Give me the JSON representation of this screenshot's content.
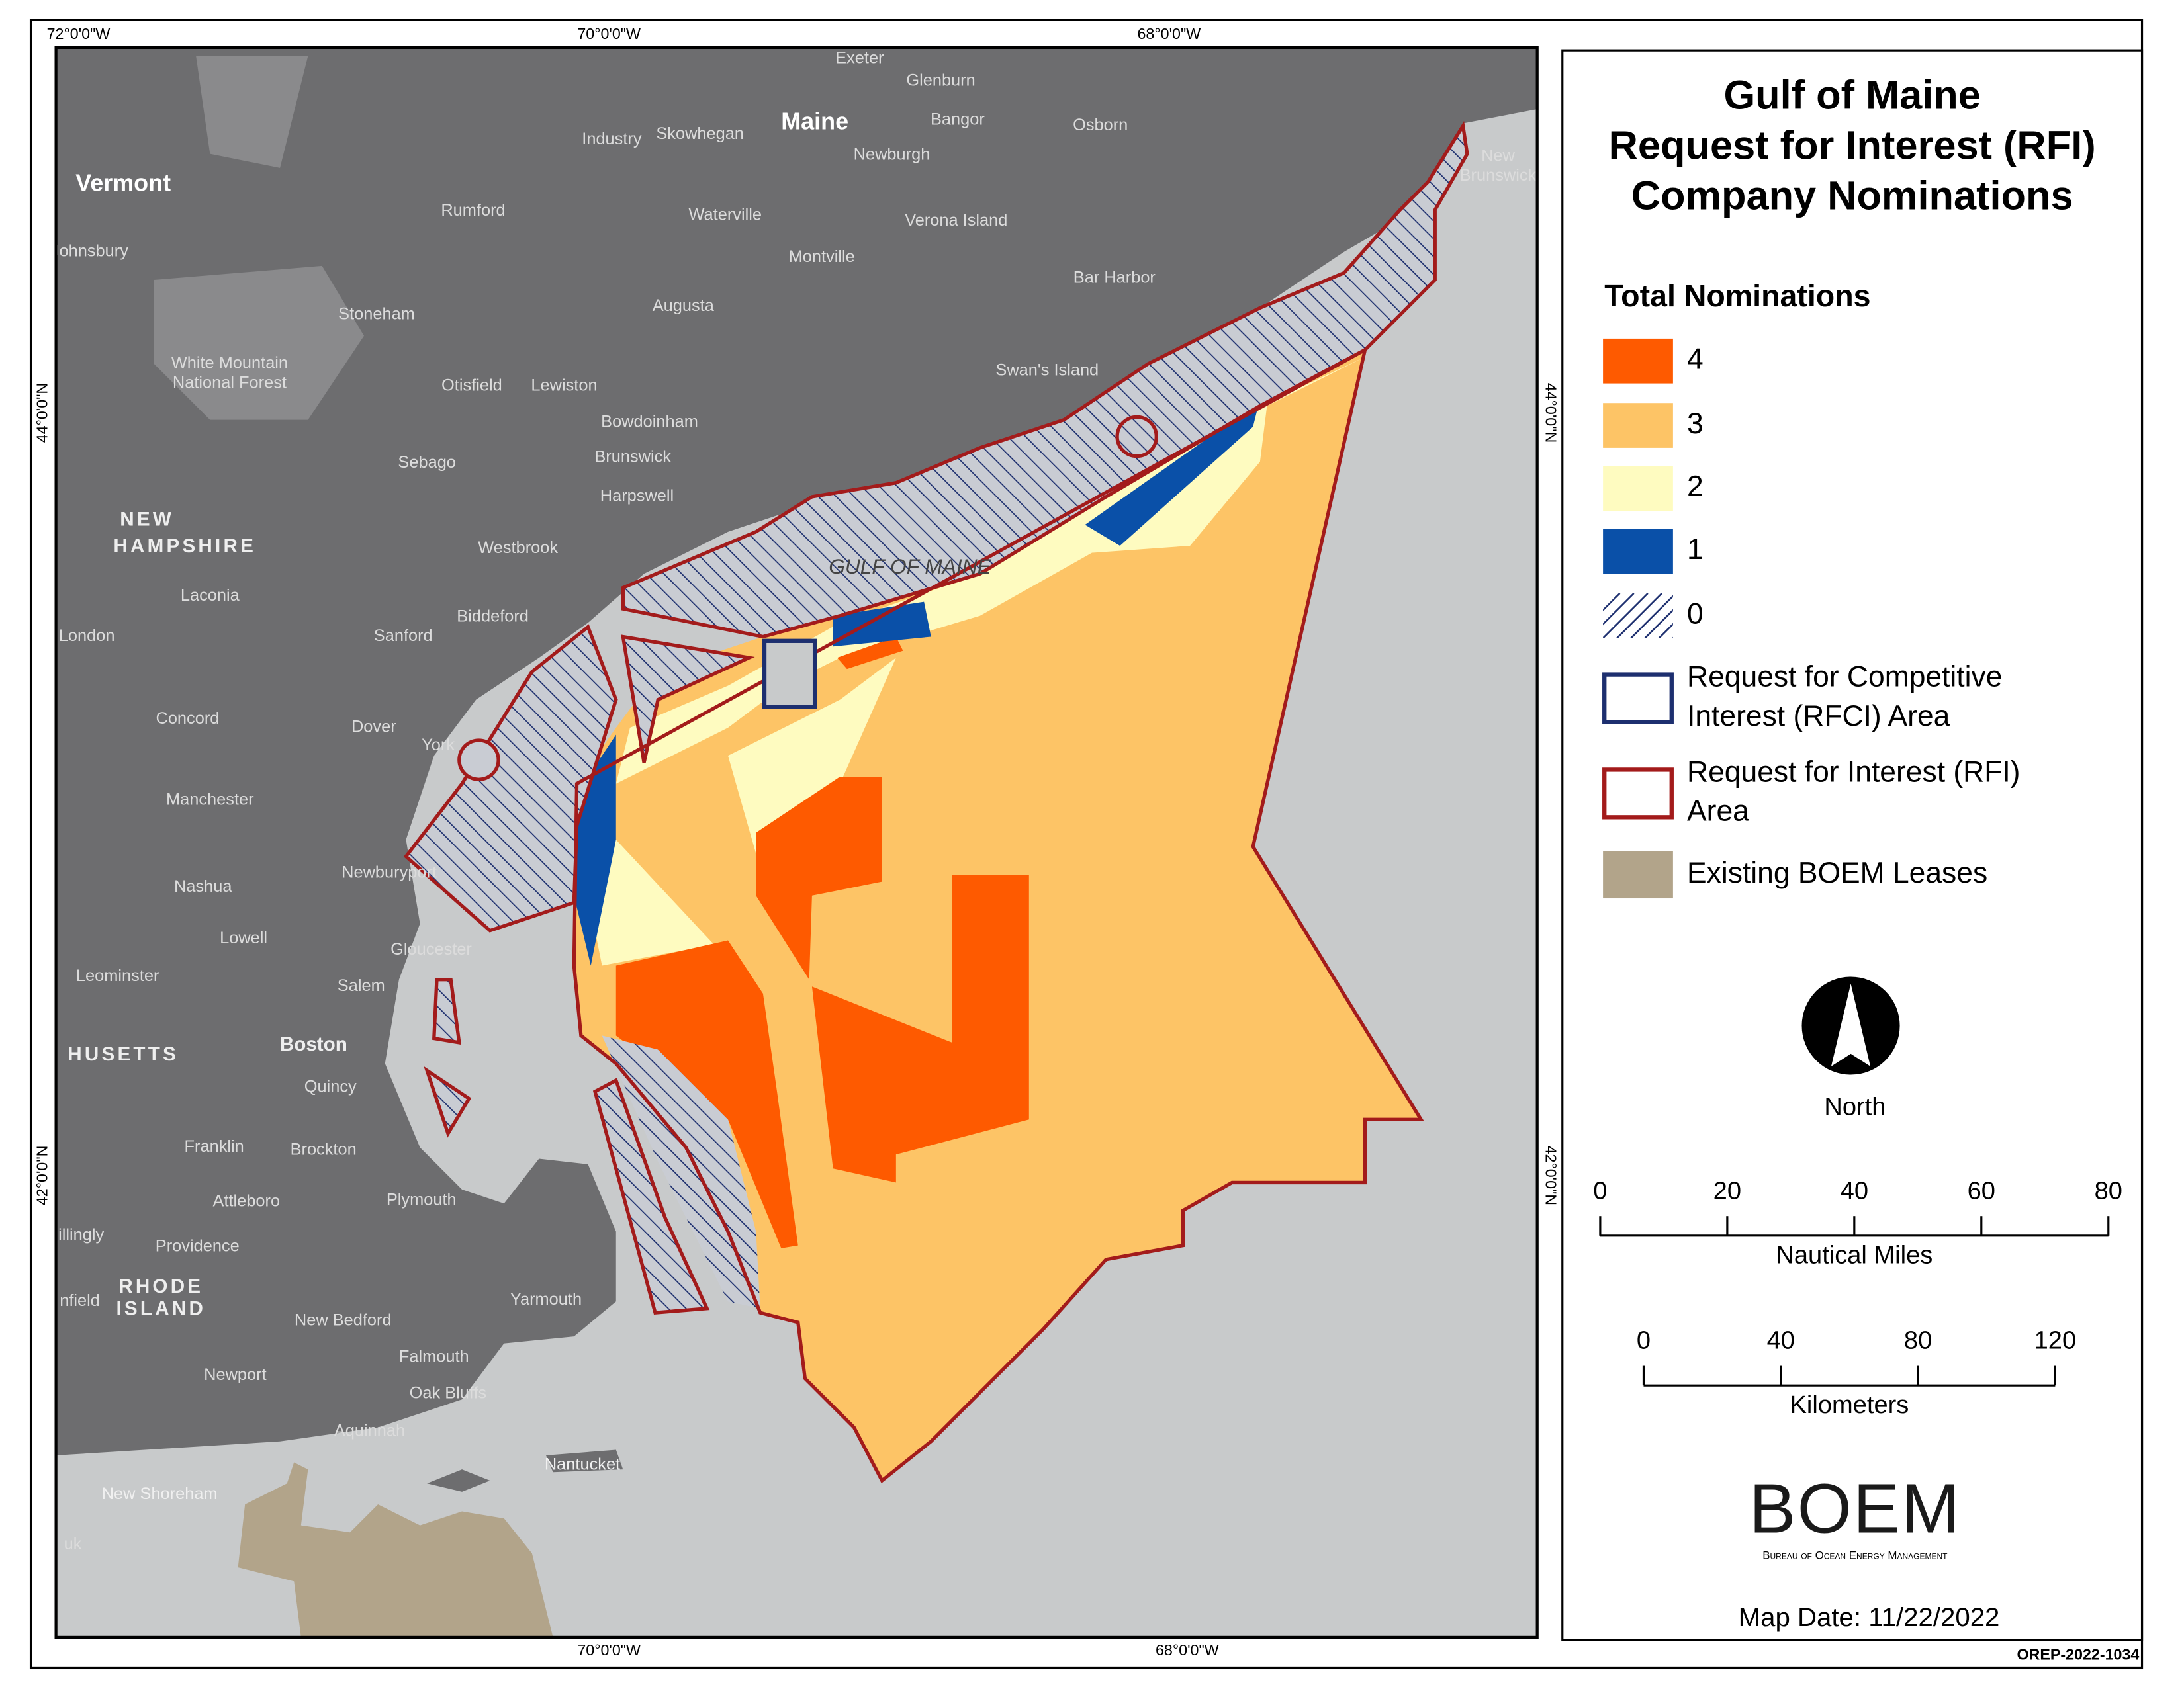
{
  "header": {
    "title_lines": [
      "Gulf of Maine",
      "Request for Interest (RFI)",
      "Company Nominations"
    ]
  },
  "legend": {
    "title": "Total Nominations",
    "nominations": [
      {
        "label": "4",
        "color": "#fe5a00"
      },
      {
        "label": "3",
        "color": "#fdc466"
      },
      {
        "label": "2",
        "color": "#fefbc0"
      },
      {
        "label": "1",
        "color": "#0a50a8"
      },
      {
        "label": "0",
        "color": "#1d2f6f"
      }
    ],
    "areas": [
      {
        "label_lines": [
          "Request for Competitive",
          "Interest (RFCI) Area"
        ],
        "color": "#1d2f6f"
      },
      {
        "label_lines": [
          "Request for Interest (RFI)",
          "Area"
        ],
        "color": "#a31b1b"
      },
      {
        "label_lines": [
          "Existing BOEM Leases"
        ],
        "color": "#b2a48a"
      }
    ]
  },
  "north_label": "North",
  "scale_bars": [
    {
      "ticks": [
        0,
        20,
        40,
        60,
        80
      ],
      "unit": "Nautical Miles"
    },
    {
      "ticks": [
        0,
        40,
        80,
        120
      ],
      "unit": "Kilometers"
    }
  ],
  "graticule": {
    "top": [
      "72°0'0\"W",
      "70°0'0\"W",
      "68°0'0\"W"
    ],
    "bottom": [
      "70°0'0\"W",
      "68°0'0\"W"
    ],
    "left": [
      "44°0'0\"N",
      "42°0'0\"N"
    ],
    "right": [
      "44°0'0\"N",
      "42°0'0\"N"
    ]
  },
  "map_labels": [
    "Exeter",
    "Glenburn",
    "Industry",
    "Skowhegan",
    "Maine",
    "Bangor",
    "Osborn",
    "Newburgh",
    "New",
    "Brunswick",
    "Vermont",
    "Rumford",
    "Waterville",
    "Verona Island",
    "Johnsbury",
    "Montville",
    "Bar Harbor",
    "Stoneham",
    "Augusta",
    "White Mountain",
    "National Forest",
    "Swan's Island",
    "Otisfield",
    "Lewiston",
    "Bowdoinham",
    "Sebago",
    "Brunswick",
    "Harpswell",
    "NEW",
    "HAMPSHIRE",
    "Westbrook",
    "GULF OF MAINE",
    "Laconia",
    "Biddeford",
    "London",
    "Sanford",
    "Concord",
    "Dover",
    "York",
    "Manchester",
    "Newburyport",
    "Nashua",
    "Lowell",
    "Gloucester",
    "Leominster",
    "Salem",
    "HUSETTS",
    "Boston",
    "Quincy",
    "Franklin",
    "Brockton",
    "Attleboro",
    "Plymouth",
    "illingly",
    "Providence",
    "RHODE",
    "ISLAND",
    "nfield",
    "Yarmouth",
    "New Bedford",
    "Falmouth",
    "Newport",
    "Oak Bluffs",
    "Aquinnah",
    "Nantucket",
    "New Shoreham",
    "uk"
  ],
  "logo": {
    "name": "BOEM",
    "subtitle": "Bureau of Ocean Energy Management"
  },
  "map_date": "Map Date: 11/22/2022",
  "document_id": "OREP-2022-1034"
}
